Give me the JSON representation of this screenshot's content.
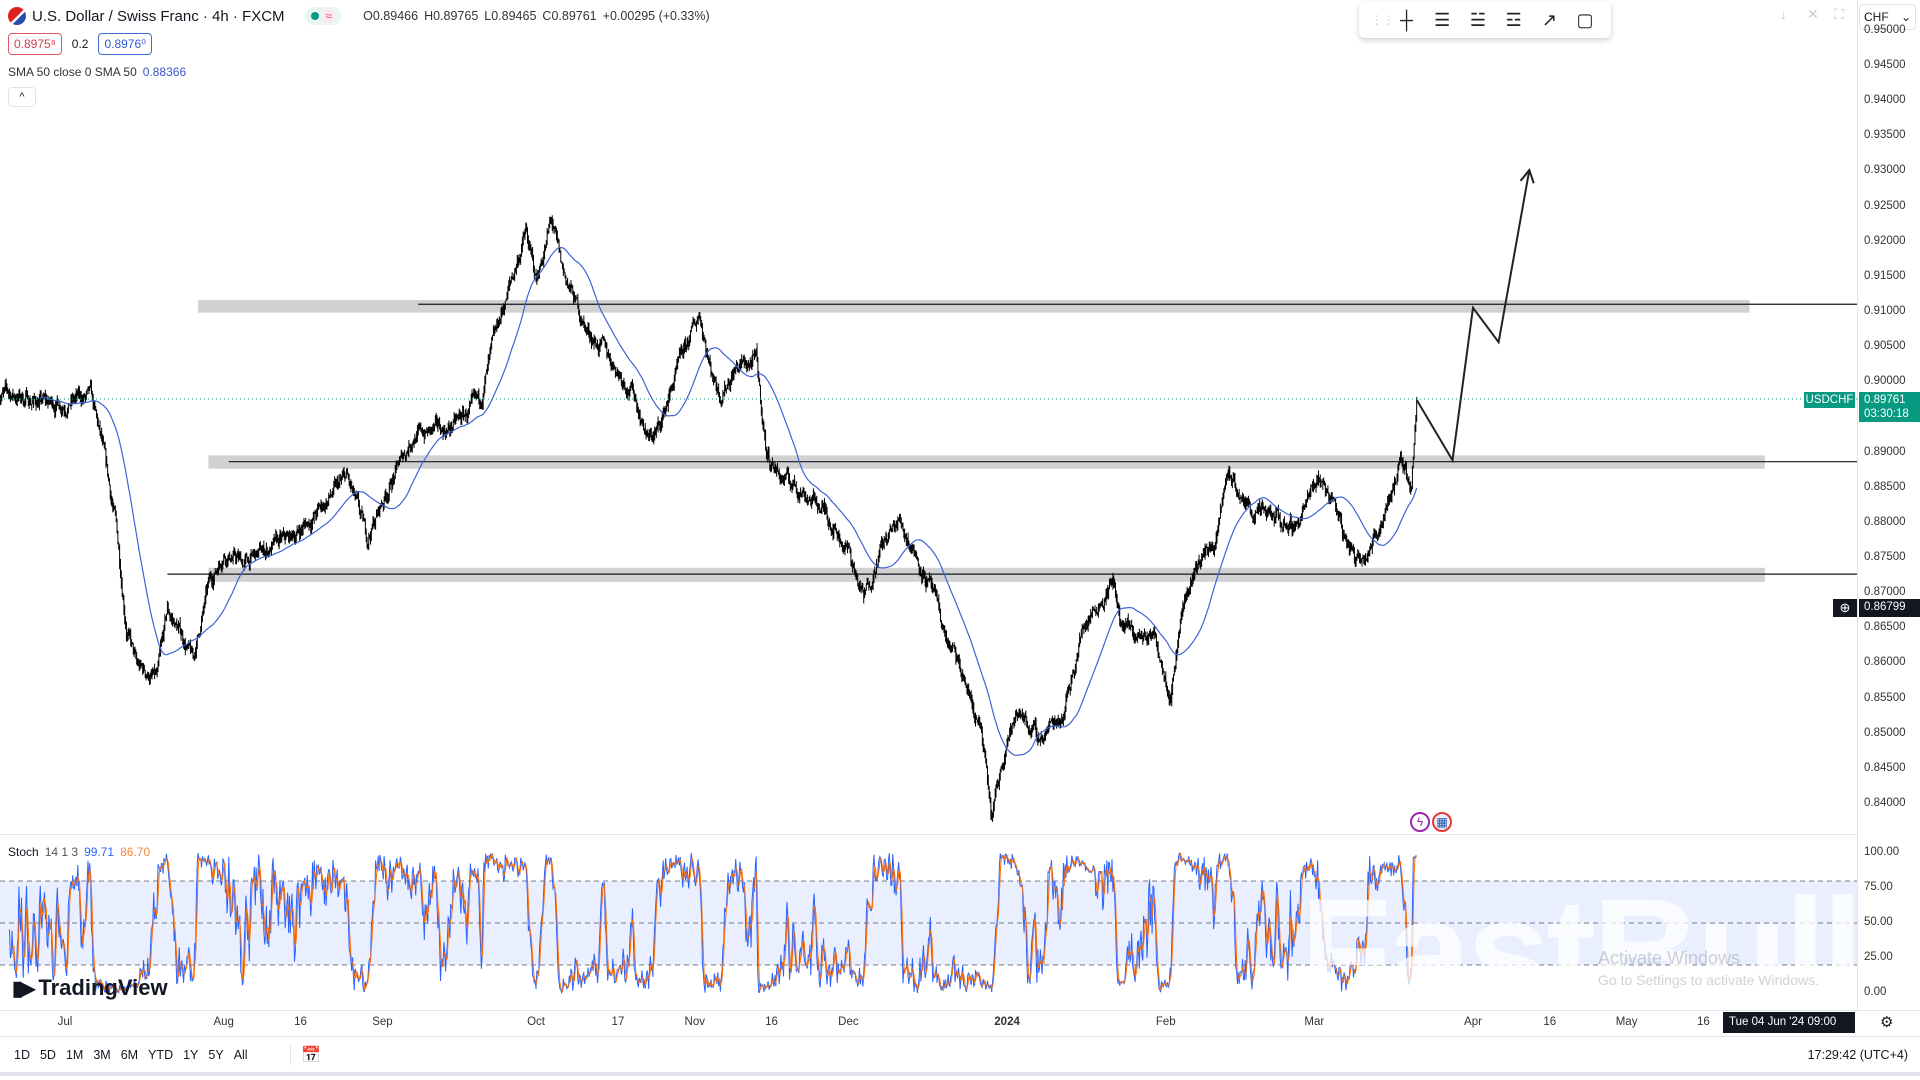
{
  "header": {
    "title": "U.S. Dollar / Swiss Franc · 4h · FXCM",
    "market_status_icon": "green-dot",
    "approx_icon": "≈",
    "ohlc": {
      "o": "O0.89466",
      "h": "H0.89765",
      "l": "L0.89465",
      "c": "C0.89761",
      "change": "+0.00295 (+0.33%)"
    },
    "bid": "0.8975⁸",
    "spread": "0.2",
    "ask": "0.8976⁰",
    "indicator": "SMA 50 close 0 SMA 50",
    "indicator_value": "0.88366",
    "collapse_icon": "^"
  },
  "toolbar": {
    "icons": [
      "drag-handle",
      "crosshair",
      "horizontal-lines",
      "parallel-channel",
      "regression-trend",
      "path",
      "rectangle"
    ]
  },
  "top_right": {
    "currency": "CHF"
  },
  "price_axis": {
    "ticks": [
      "0.95000",
      "0.94500",
      "0.94000",
      "0.93500",
      "0.93000",
      "0.92500",
      "0.92000",
      "0.91500",
      "0.91000",
      "0.90500",
      "0.90000",
      "0.89500",
      "0.89000",
      "0.88500",
      "0.88000",
      "0.87500",
      "0.87000",
      "0.86500",
      "0.86000",
      "0.85500",
      "0.85000",
      "0.84500",
      "0.84000"
    ],
    "symbol_label": "USDCHF",
    "last_price": "0.89761",
    "countdown": "03:30:18",
    "crosshair_price": "0.86799"
  },
  "stoch": {
    "label": "Stoch",
    "params": "14 1 3",
    "k": "99.71",
    "d": "86.70",
    "ticks": [
      "100.00",
      "75.00",
      "50.00",
      "25.00",
      "0.00"
    ],
    "upper": 80,
    "middle": 50,
    "lower": 20,
    "k_color": "#2962ff",
    "d_color": "#ff6d00"
  },
  "time_axis": {
    "ticks": [
      [
        "Jul",
        "2023-07-01"
      ],
      [
        "Aug",
        "2023-08-01"
      ],
      [
        "16",
        "2023-08-16"
      ],
      [
        "Sep",
        "2023-09-01"
      ],
      [
        "Oct",
        "2023-10-01"
      ],
      [
        "17",
        "2023-10-17"
      ],
      [
        "Nov",
        "2023-11-01"
      ],
      [
        "16",
        "2023-11-16"
      ],
      [
        "Dec",
        "2023-12-01"
      ],
      [
        "2024",
        "2024-01-01"
      ],
      [
        "Feb",
        "2024-02-01"
      ],
      [
        "Mar",
        "2024-03-01"
      ],
      [
        "Apr",
        "2024-04-01"
      ],
      [
        "16",
        "2024-04-16"
      ],
      [
        "May",
        "2024-05-01"
      ],
      [
        "16",
        "2024-05-16"
      ]
    ],
    "crosshair_date": "Tue 04 Jun '24  09:00"
  },
  "bottom": {
    "ranges": [
      "1D",
      "5D",
      "1M",
      "3M",
      "6M",
      "YTD",
      "1Y",
      "5Y",
      "All"
    ],
    "clock": "17:29:42 (UTC+4)"
  },
  "branding": {
    "logo": "TradingView",
    "watermark": "FastBull",
    "os_notice": "Activate Windows",
    "os_notice_sub": "Go to Settings to activate Windows."
  },
  "chart": {
    "last_close": 0.89761,
    "sma_period": 50,
    "sma_color": "#3d63d6",
    "price_path": [
      [
        "2023-06-18",
        0.8986
      ],
      [
        "2023-06-28",
        0.8969
      ],
      [
        "2023-07-06",
        0.8978
      ],
      [
        "2023-07-08",
        0.8917
      ],
      [
        "2023-07-11",
        0.8795
      ],
      [
        "2023-07-13",
        0.8655
      ],
      [
        "2023-07-15",
        0.8594
      ],
      [
        "2023-07-19",
        0.8577
      ],
      [
        "2023-07-21",
        0.8673
      ],
      [
        "2023-07-24",
        0.8638
      ],
      [
        "2023-07-26",
        0.8603
      ],
      [
        "2023-07-29",
        0.8708
      ],
      [
        "2023-08-01",
        0.876
      ],
      [
        "2023-08-05",
        0.8742
      ],
      [
        "2023-08-09",
        0.876
      ],
      [
        "2023-08-14",
        0.8777
      ],
      [
        "2023-08-19",
        0.8812
      ],
      [
        "2023-08-25",
        0.8864
      ],
      [
        "2023-08-29",
        0.8777
      ],
      [
        "2023-09-02",
        0.8847
      ],
      [
        "2023-09-07",
        0.8925
      ],
      [
        "2023-09-14",
        0.8934
      ],
      [
        "2023-09-20",
        0.8969
      ],
      [
        "2023-09-24",
        0.9091
      ],
      [
        "2023-09-29",
        0.9213
      ],
      [
        "2023-10-01",
        0.9143
      ],
      [
        "2023-10-04",
        0.923
      ],
      [
        "2023-10-06",
        0.9161
      ],
      [
        "2023-10-11",
        0.9073
      ],
      [
        "2023-10-15",
        0.9039
      ],
      [
        "2023-10-20",
        0.8986
      ],
      [
        "2023-10-23",
        0.8917
      ],
      [
        "2023-10-25",
        0.8934
      ],
      [
        "2023-10-28",
        0.9004
      ],
      [
        "2023-11-02",
        0.91
      ],
      [
        "2023-11-04",
        0.9021
      ],
      [
        "2023-11-06",
        0.8986
      ],
      [
        "2023-11-09",
        0.9021
      ],
      [
        "2023-11-13",
        0.903
      ],
      [
        "2023-11-15",
        0.8899
      ],
      [
        "2023-11-18",
        0.8864
      ],
      [
        "2023-11-22",
        0.8847
      ],
      [
        "2023-11-27",
        0.8812
      ],
      [
        "2023-12-01",
        0.876
      ],
      [
        "2023-12-04",
        0.869
      ],
      [
        "2023-12-07",
        0.876
      ],
      [
        "2023-12-11",
        0.8803
      ],
      [
        "2023-12-14",
        0.876
      ],
      [
        "2023-12-17",
        0.8708
      ],
      [
        "2023-12-20",
        0.8638
      ],
      [
        "2023-12-24",
        0.8568
      ],
      [
        "2023-12-27",
        0.8499
      ],
      [
        "2023-12-29",
        0.8376
      ],
      [
        "2024-01-01",
        0.8499
      ],
      [
        "2024-01-04",
        0.8533
      ],
      [
        "2024-01-07",
        0.849
      ],
      [
        "2024-01-12",
        0.8533
      ],
      [
        "2024-01-16",
        0.8655
      ],
      [
        "2024-01-19",
        0.869
      ],
      [
        "2024-01-22",
        0.8716
      ],
      [
        "2024-01-23",
        0.8655
      ],
      [
        "2024-01-26",
        0.8638
      ],
      [
        "2024-01-30",
        0.8638
      ],
      [
        "2024-02-02",
        0.856
      ],
      [
        "2024-02-04",
        0.8673
      ],
      [
        "2024-02-07",
        0.8742
      ],
      [
        "2024-02-11",
        0.8777
      ],
      [
        "2024-02-13",
        0.8873
      ],
      [
        "2024-02-16",
        0.8829
      ],
      [
        "2024-02-19",
        0.8812
      ],
      [
        "2024-02-23",
        0.8803
      ],
      [
        "2024-02-26",
        0.8795
      ],
      [
        "2024-03-01",
        0.8847
      ],
      [
        "2024-03-02",
        0.8864
      ],
      [
        "2024-03-05",
        0.8829
      ],
      [
        "2024-03-07",
        0.8777
      ],
      [
        "2024-03-09",
        0.8751
      ],
      [
        "2024-03-13",
        0.8777
      ],
      [
        "2024-03-15",
        0.8829
      ],
      [
        "2024-03-18",
        0.8882
      ],
      [
        "2024-03-20",
        0.8856
      ],
      [
        "2024-03-21",
        0.8976
      ]
    ],
    "zones": [
      {
        "from": "2023-07-27",
        "to": "2024-05-25",
        "top": 0.9117,
        "bottom": 0.9099,
        "line": 0.9111,
        "line_from": "2023-09-08"
      },
      {
        "from": "2023-07-29",
        "to": "2024-05-28",
        "top": 0.8896,
        "bottom": 0.8877,
        "line": 0.8887,
        "line_from": "2023-08-02"
      },
      {
        "from": "2023-07-29",
        "to": "2024-05-28",
        "top": 0.8736,
        "bottom": 0.8716,
        "line": 0.8727,
        "line_from": "2023-07-21"
      }
    ],
    "zone_color": "#d1d1d1",
    "projection": [
      [
        "2024-03-21",
        0.8975
      ],
      [
        "2024-03-28",
        0.8889
      ],
      [
        "2024-04-01",
        0.9106
      ],
      [
        "2024-04-06",
        0.9057
      ],
      [
        "2024-04-12",
        0.9302
      ]
    ]
  }
}
